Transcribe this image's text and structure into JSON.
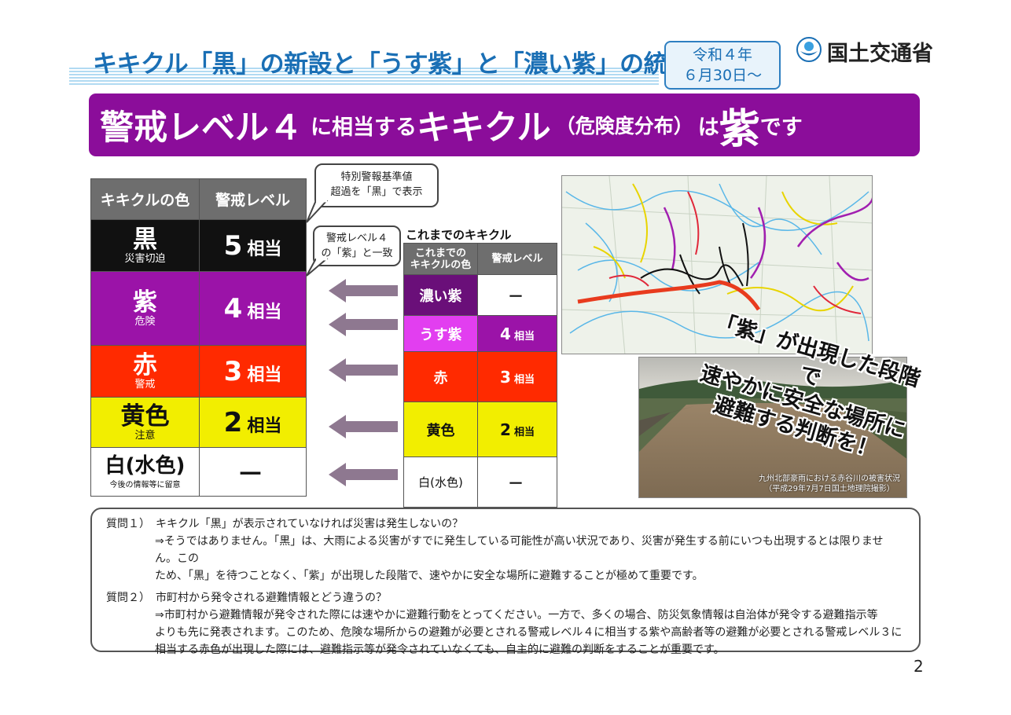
{
  "header": {
    "title": "キキクル「黒」の新設と「うす紫」と「濃い紫」の統合",
    "date_line1": "令和４年",
    "date_line2": "６月30日～",
    "ministry": "国土交通省"
  },
  "banner": {
    "part1": "警戒レベル４",
    "part2": "に相当する",
    "part3": "キキクル",
    "part4": "（危険度分布）",
    "part5": "は",
    "part6": "紫",
    "part7": "です"
  },
  "new_table": {
    "headers": [
      "キキクルの色",
      "警戒レベル"
    ],
    "rows": [
      {
        "color": "黒",
        "sub": "災害切迫",
        "level": "5",
        "suffix": "相当",
        "bg": "#111111",
        "fg": "#ffffff",
        "level_bg": "#111111",
        "level_fg": "#ffffff"
      },
      {
        "color": "紫",
        "sub": "危険",
        "level": "4",
        "suffix": "相当",
        "bg": "#9b13a8",
        "fg": "#ffffff",
        "level_bg": "#9b13a8",
        "level_fg": "#ffffff"
      },
      {
        "color": "赤",
        "sub": "警戒",
        "level": "3",
        "suffix": "相当",
        "bg": "#ff2a00",
        "fg": "#ffffff",
        "level_bg": "#ff2a00",
        "level_fg": "#ffffff"
      },
      {
        "color": "黄色",
        "sub": "注意",
        "level": "2",
        "suffix": "相当",
        "bg": "#f2ee00",
        "fg": "#111111",
        "level_bg": "#f2ee00",
        "level_fg": "#111111"
      },
      {
        "color": "白(水色)",
        "sub": "今後の情報等に留意",
        "level": "－",
        "suffix": "",
        "bg": "#ffffff",
        "fg": "#111111",
        "level_bg": "#ffffff",
        "level_fg": "#111111"
      }
    ]
  },
  "bubbles": {
    "black_line1": "特別警報基準値",
    "black_line2": "超過を「黒」で表示",
    "purple_line1": "警戒レベル４",
    "purple_line2": "の「紫」と一致"
  },
  "old_table": {
    "title": "これまでのキキクル",
    "header_color_line1": "これまでの",
    "header_color_line2": "キキクルの色",
    "header_level": "警戒レベル",
    "rows": [
      {
        "color": "濃い紫",
        "level": "－",
        "suffix": "",
        "bg": "#6a0f79",
        "fg": "#ffffff",
        "level_bg": "#ffffff",
        "level_fg": "#111111"
      },
      {
        "color": "うす紫",
        "level": "4",
        "suffix": "相当",
        "bg": "#e23ef0",
        "fg": "#ffffff",
        "level_bg": "#9b13a8",
        "level_fg": "#ffffff"
      },
      {
        "color": "赤",
        "level": "3",
        "suffix": "相当",
        "bg": "#ff2a00",
        "fg": "#ffffff",
        "level_bg": "#ff2a00",
        "level_fg": "#ffffff"
      },
      {
        "color": "黄色",
        "level": "2",
        "suffix": "相当",
        "bg": "#f2ee00",
        "fg": "#111111",
        "level_bg": "#f2ee00",
        "level_fg": "#111111"
      },
      {
        "color": "白(水色)",
        "level": "－",
        "suffix": "",
        "bg": "#ffffff",
        "fg": "#111111",
        "level_bg": "#ffffff",
        "level_fg": "#111111"
      }
    ]
  },
  "photo": {
    "caption_line1": "九州北部豪雨における赤谷川の被害状況",
    "caption_line2": "（平成29年7月7日国土地理院撮影）"
  },
  "callout": {
    "line1": "「紫」が出現した段階で",
    "line2": "速やかに安全な場所に",
    "line3": "避難する判断を！"
  },
  "faq": {
    "q1": "質問１）　キキクル「黒」が表示されていなければ災害は発生しないの？",
    "a1_line1": "⇒そうではありません。「黒」は、大雨による災害がすでに発生している可能性が高い状況であり、災害が発生する前にいつも出現するとは限りません。この",
    "a1_line2": "ため、「黒」を待つことなく、「紫」が出現した段階で、速やかに安全な場所に避難することが極めて重要です。",
    "q2": "質問２）　市町村から発令される避難情報とどう違うの？",
    "a2_line1": "⇒市町村から避難情報が発令された際には速やかに避難行動をとってください。一方で、多くの場合、防災気象情報は自治体が発令する避難指示等",
    "a2_line2": "よりも先に発表されます。このため、危険な場所からの避難が必要とされる警戒レベル４に相当する紫や高齢者等の避難が必要とされる警戒レベル３に",
    "a2_line3": "相当する赤色が出現した際には、避難指示等が発令されていなくても、自主的に避難の判断をすることが重要です。"
  },
  "page_number": "2",
  "colors": {
    "brand_blue": "#1a6fb5",
    "banner_purple": "#8b0d9a",
    "arrow": "#8e7890"
  }
}
